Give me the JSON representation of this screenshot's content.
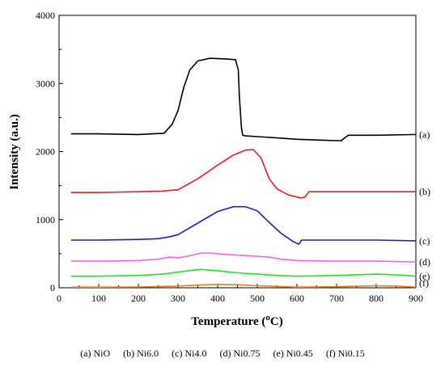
{
  "chart_data": {
    "type": "line",
    "xlabel": "Temperature (",
    "xlabel_sup": "o",
    "xlabel_unit": "C)",
    "ylabel": "Intensity (a.u.)",
    "xlim": [
      0,
      900
    ],
    "ylim": [
      0,
      4000
    ],
    "x_ticks": [
      "0",
      "100",
      "200",
      "300",
      "400",
      "500",
      "600",
      "700",
      "800",
      "900"
    ],
    "y_ticks": [
      "0",
      "1000",
      "2000",
      "3000",
      "4000"
    ],
    "grid": false,
    "series": [
      {
        "name": "(a) NiO",
        "label": "(a)",
        "color": "#000000",
        "x": [
          30,
          100,
          200,
          265,
          285,
          300,
          315,
          330,
          350,
          380,
          420,
          445,
          452,
          455,
          460,
          463,
          470,
          500,
          550,
          600,
          650,
          700,
          712,
          720,
          730,
          800,
          900
        ],
        "y": [
          2260,
          2260,
          2250,
          2270,
          2400,
          2600,
          2950,
          3200,
          3330,
          3370,
          3360,
          3350,
          3200,
          2800,
          2350,
          2240,
          2230,
          2220,
          2200,
          2180,
          2170,
          2160,
          2160,
          2200,
          2240,
          2240,
          2250
        ]
      },
      {
        "name": "(b) Ni6.0",
        "label": "(b)",
        "color": "#ee1c1c",
        "x": [
          30,
          100,
          200,
          260,
          300,
          350,
          400,
          440,
          470,
          490,
          510,
          530,
          550,
          580,
          610,
          620,
          630,
          650,
          700,
          800,
          900
        ],
        "y": [
          1400,
          1400,
          1410,
          1420,
          1440,
          1600,
          1800,
          1950,
          2020,
          2030,
          1900,
          1600,
          1450,
          1360,
          1320,
          1330,
          1410,
          1410,
          1410,
          1410,
          1410
        ]
      },
      {
        "name": "(c) Ni4.0",
        "label": "(c)",
        "color": "#1d1dd6",
        "x": [
          30,
          100,
          200,
          250,
          280,
          300,
          350,
          400,
          440,
          470,
          500,
          530,
          560,
          590,
          605,
          612,
          620,
          700,
          800,
          900
        ],
        "y": [
          700,
          700,
          710,
          720,
          750,
          780,
          950,
          1120,
          1190,
          1190,
          1130,
          960,
          800,
          680,
          640,
          700,
          700,
          700,
          700,
          690
        ]
      },
      {
        "name": "(d) Ni0.75",
        "label": "(d)",
        "color": "#ee66ee",
        "x": [
          30,
          100,
          200,
          250,
          280,
          300,
          330,
          360,
          380,
          420,
          480,
          530,
          560,
          600,
          700,
          800,
          900
        ],
        "y": [
          390,
          390,
          400,
          420,
          450,
          440,
          470,
          510,
          510,
          490,
          470,
          450,
          420,
          400,
          390,
          390,
          380
        ]
      },
      {
        "name": "(e) Ni0.45",
        "label": "(e)",
        "color": "#1ee61e",
        "x": [
          30,
          100,
          200,
          260,
          300,
          340,
          360,
          400,
          450,
          500,
          550,
          600,
          700,
          800,
          850,
          900
        ],
        "y": [
          170,
          170,
          180,
          200,
          230,
          260,
          270,
          250,
          220,
          200,
          180,
          170,
          180,
          200,
          190,
          170
        ]
      },
      {
        "name": "(f) Ni0.15",
        "label": "(f)",
        "color": "#ef7d1e",
        "x": [
          30,
          100,
          200,
          300,
          350,
          400,
          450,
          500,
          550,
          600,
          700,
          800,
          850,
          900
        ],
        "y": [
          10,
          10,
          12,
          25,
          40,
          50,
          45,
          30,
          20,
          10,
          15,
          30,
          25,
          10
        ]
      }
    ]
  },
  "legend": {
    "items": [
      "(a) NiO",
      "(b) Ni6.0",
      "(c) Ni4.0",
      "(d) Ni0.75",
      "(e) Ni0.45",
      "(f) Ni0.15"
    ]
  }
}
